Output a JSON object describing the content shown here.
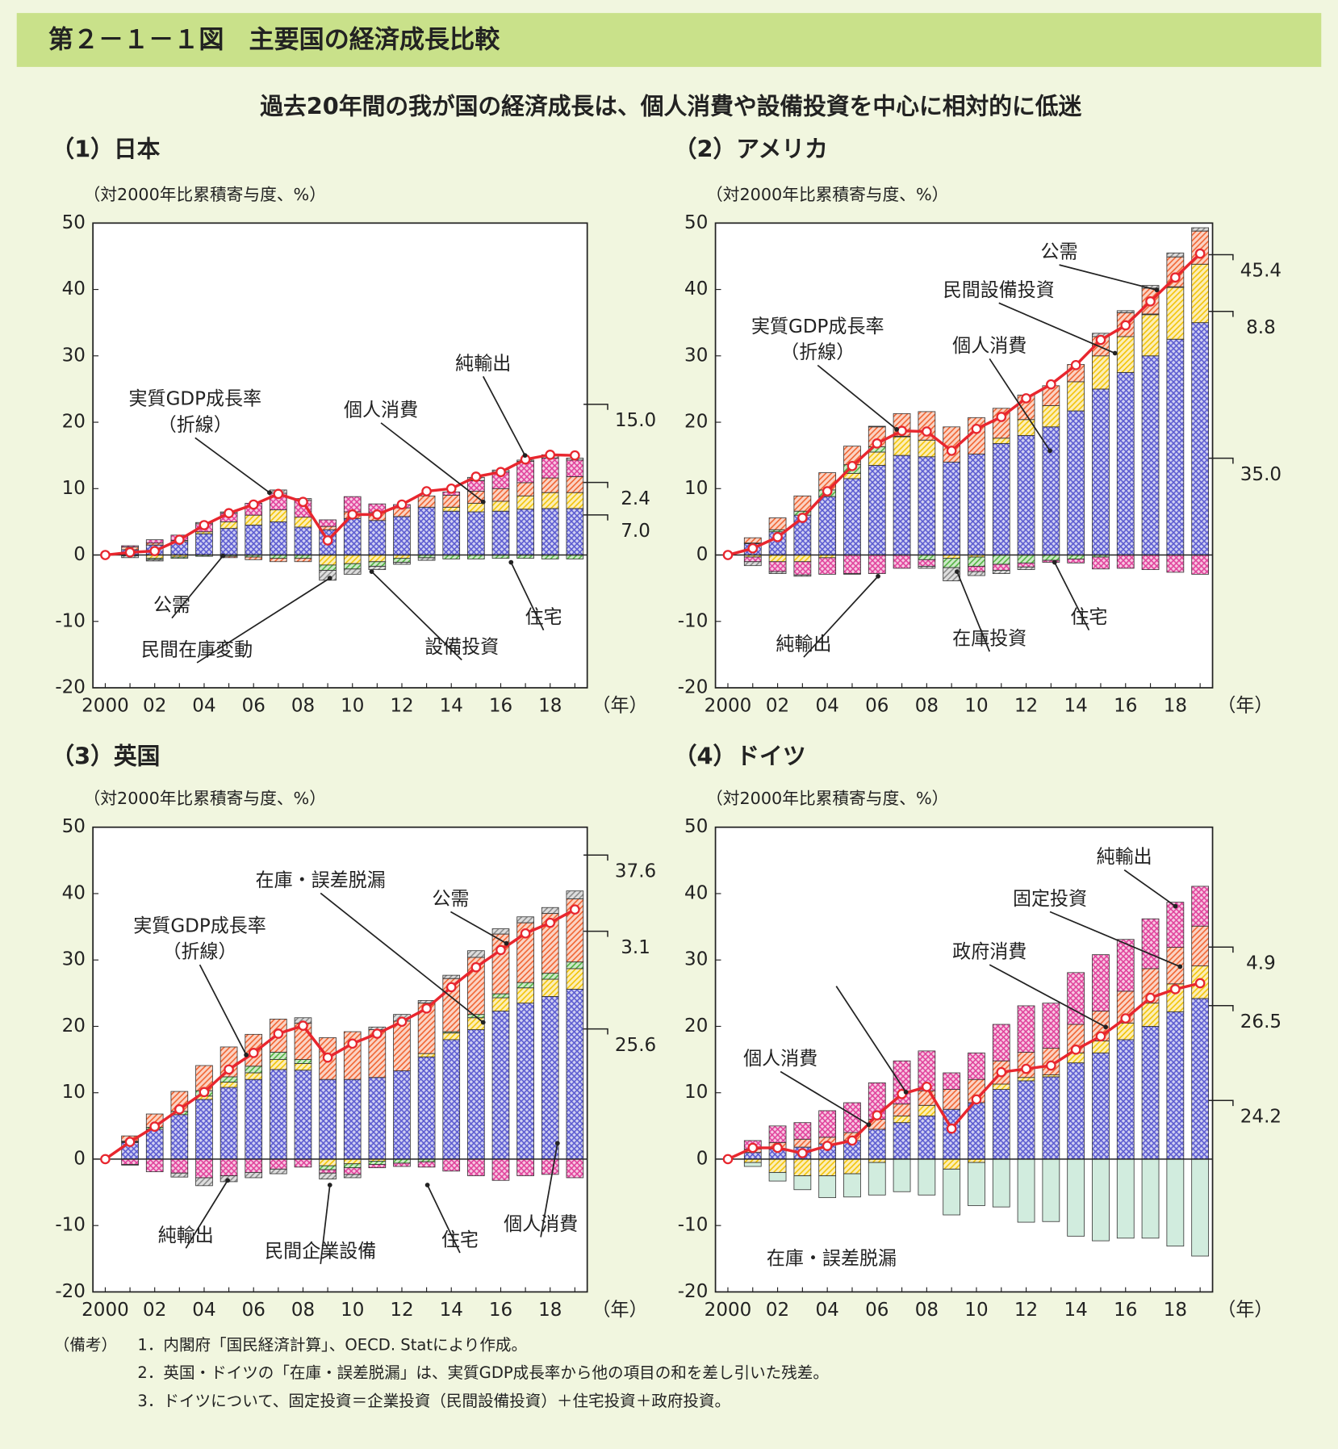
{
  "title": "第２－１－１図　主要国の経済成長比較",
  "subtitle": "過去20年間の我が国の経済成長は、個人消費や設備投資を中心に相対的に低迷",
  "notes": [
    "（備考）",
    "1．内閣府「国民経済計算」、OECD. Statにより作成。",
    "2．英国・ドイツの「在庫・誤差脱漏」は、実質GDP成長率から他の項目の和を差し引いた残差。",
    "3．ドイツについて、固定投資＝企業投資（民間設備投資）＋住宅投資＋政府投資。"
  ],
  "chart_data": [
    {
      "type": "stacked_bar_line",
      "title": "（1）日本",
      "y_label": "（対2000年比累積寄与度、%）",
      "x_label": "（年）",
      "categories": [
        "2000",
        null,
        "02",
        null,
        "04",
        null,
        "06",
        null,
        "08",
        null,
        "10",
        null,
        "12",
        null,
        "14",
        null,
        "16",
        null,
        "18",
        null
      ],
      "ylim": [
        -20,
        50
      ],
      "yticks": [
        -20,
        -10,
        0,
        10,
        20,
        30,
        40,
        50
      ],
      "series": [
        {
          "name": "個人消費",
          "color": "#5a5ad0",
          "hatch": "cross",
          "values": [
            0,
            0.8,
            1.5,
            2.0,
            3.2,
            4.0,
            4.5,
            5.0,
            4.2,
            3.8,
            5.5,
            5.2,
            5.8,
            7.2,
            6.6,
            6.5,
            6.6,
            6.9,
            7.0,
            7.0
          ]
        },
        {
          "name": "設備投資",
          "color": "#f2c200",
          "hatch": "diag",
          "values": [
            0,
            0,
            -0.5,
            -0.3,
            0.3,
            1.0,
            1.5,
            1.8,
            1.5,
            -1.5,
            -1.3,
            -1.0,
            -0.5,
            0,
            0.6,
            1.3,
            1.5,
            2.0,
            2.4,
            2.4
          ]
        },
        {
          "name": "住宅",
          "color": "#4caf3a",
          "hatch": "diag",
          "values": [
            0,
            -0.1,
            -0.2,
            -0.2,
            -0.2,
            -0.2,
            -0.3,
            -0.5,
            -0.5,
            -0.8,
            -0.8,
            -0.7,
            -0.6,
            -0.4,
            -0.6,
            -0.6,
            -0.5,
            -0.5,
            -0.6,
            -0.6
          ]
        },
        {
          "name": "公需",
          "color": "#f0602c",
          "hatch": "diag",
          "values": [
            0,
            0.4,
            0.3,
            0.2,
            0,
            -0.2,
            -0.4,
            -0.5,
            -0.5,
            0.5,
            1.0,
            1.2,
            1.3,
            1.7,
            1.8,
            1.8,
            1.9,
            2.0,
            2.2,
            2.4
          ]
        },
        {
          "name": "純輸出",
          "color": "#e0409a",
          "hatch": "cross",
          "values": [
            0,
            0.2,
            0.5,
            0.8,
            1.2,
            1.3,
            1.8,
            2.5,
            2.5,
            1.0,
            2.3,
            1.3,
            0.5,
            0,
            0.5,
            1.6,
            2.5,
            3.2,
            3.0,
            2.5
          ]
        },
        {
          "name": "民間在庫変動",
          "color": "#888888",
          "hatch": "diag",
          "values": [
            0,
            -0.3,
            -0.2,
            0,
            0.2,
            0.2,
            0,
            0.5,
            0.3,
            -1.5,
            -0.8,
            -0.5,
            -0.3,
            -0.4,
            0,
            0.5,
            0.3,
            0.2,
            0.5,
            0.3
          ]
        },
        {
          "name": "実質GDP成長率",
          "note": "（折線）",
          "type": "line",
          "color": "#e8262e",
          "values": [
            0,
            0.4,
            0.6,
            2.3,
            4.5,
            6.3,
            7.6,
            9.2,
            8.0,
            2.2,
            6.1,
            6.1,
            7.6,
            9.6,
            10.0,
            11.8,
            12.5,
            14.4,
            15.1,
            15.0
          ]
        }
      ],
      "end_labels": [
        "15.0",
        "2.4",
        "7.0"
      ]
    },
    {
      "type": "stacked_bar_line",
      "title": "（2）アメリカ",
      "y_label": "（対2000年比累積寄与度、%）",
      "x_label": "（年）",
      "categories": [
        "2000",
        null,
        "02",
        null,
        "04",
        null,
        "06",
        null,
        "08",
        null,
        "10",
        null,
        "12",
        null,
        "14",
        null,
        "16",
        null,
        "18",
        null
      ],
      "ylim": [
        -20,
        50
      ],
      "yticks": [
        -20,
        -10,
        0,
        10,
        20,
        30,
        40,
        50
      ],
      "series": [
        {
          "name": "個人消費",
          "color": "#5a5ad0",
          "hatch": "cross",
          "values": [
            0,
            1.7,
            3.5,
            6.0,
            8.8,
            11.5,
            13.5,
            15.0,
            14.8,
            14.0,
            15.2,
            16.8,
            18.0,
            19.3,
            21.7,
            25.0,
            27.5,
            30.0,
            32.5,
            35.0
          ]
        },
        {
          "name": "民間設備投資",
          "color": "#f2c200",
          "hatch": "diag",
          "values": [
            0,
            -0.3,
            -1.0,
            -1.0,
            -0.4,
            0.8,
            2.0,
            2.8,
            2.5,
            -0.5,
            -0.3,
            0.8,
            2.4,
            3.2,
            4.4,
            5.0,
            5.4,
            6.2,
            7.8,
            8.8
          ]
        },
        {
          "name": "住宅",
          "color": "#4caf3a",
          "hatch": "diag",
          "values": [
            0,
            0.1,
            0.3,
            0.6,
            1.0,
            1.3,
            0.8,
            0.1,
            -0.7,
            -1.4,
            -1.4,
            -1.4,
            -1.2,
            -0.8,
            -0.6,
            -0.3,
            0,
            0.1,
            0.1,
            0
          ]
        },
        {
          "name": "公需",
          "color": "#f0602c",
          "hatch": "diag",
          "values": [
            0,
            0.8,
            1.8,
            2.3,
            2.6,
            2.8,
            3.0,
            3.4,
            4.3,
            5.3,
            5.5,
            4.5,
            3.7,
            3.0,
            2.6,
            2.9,
            3.6,
            3.9,
            4.5,
            5.0
          ]
        },
        {
          "name": "純輸出",
          "color": "#e0409a",
          "hatch": "cross",
          "values": [
            0,
            -0.7,
            -1.5,
            -2.0,
            -2.5,
            -2.8,
            -2.8,
            -2.0,
            -1.0,
            0,
            -0.8,
            -0.9,
            -0.6,
            -0.3,
            -0.6,
            -1.8,
            -2.0,
            -2.2,
            -2.6,
            -2.9
          ]
        },
        {
          "name": "在庫投資",
          "color": "#888888",
          "hatch": "diag",
          "values": [
            0,
            -0.6,
            -0.3,
            -0.2,
            0,
            -0.1,
            0.1,
            0,
            -0.3,
            -2.0,
            -0.6,
            -0.5,
            -0.4,
            0,
            0,
            0.5,
            0.3,
            0.4,
            0.6,
            0.5
          ]
        },
        {
          "name": "実質GDP成長率",
          "note": "（折線）",
          "type": "line",
          "color": "#e8262e",
          "values": [
            0,
            1.0,
            2.7,
            5.6,
            9.6,
            13.4,
            16.8,
            18.7,
            18.6,
            15.7,
            19.0,
            20.8,
            23.6,
            25.7,
            28.6,
            32.4,
            34.6,
            38.2,
            41.8,
            45.4
          ]
        }
      ],
      "end_labels": [
        "45.4",
        "8.8",
        "35.0"
      ]
    },
    {
      "type": "stacked_bar_line",
      "title": "（3）英国",
      "y_label": "（対2000年比累積寄与度、%）",
      "x_label": "（年）",
      "categories": [
        "2000",
        null,
        "02",
        null,
        "04",
        null,
        "06",
        null,
        "08",
        null,
        "10",
        null,
        "12",
        null,
        "14",
        null,
        "16",
        null,
        "18",
        null
      ],
      "ylim": [
        -20,
        50
      ],
      "yticks": [
        -20,
        -10,
        0,
        10,
        20,
        30,
        40,
        50
      ],
      "series": [
        {
          "name": "個人消費",
          "color": "#5a5ad0",
          "hatch": "cross",
          "values": [
            0,
            2.5,
            4.5,
            6.7,
            9.0,
            10.8,
            12.0,
            13.5,
            13.4,
            12.0,
            12.0,
            12.3,
            13.3,
            15.4,
            18.0,
            19.5,
            22.3,
            23.5,
            24.5,
            25.6
          ]
        },
        {
          "name": "民間企業設備",
          "color": "#f2c200",
          "hatch": "diag",
          "values": [
            0,
            0.1,
            0,
            0,
            0.5,
            0.8,
            1.0,
            1.5,
            1.0,
            -1.0,
            -0.7,
            -0.3,
            0,
            0.5,
            1.0,
            1.8,
            2.0,
            2.3,
            2.6,
            3.1
          ]
        },
        {
          "name": "住宅",
          "color": "#4caf3a",
          "hatch": "diag",
          "values": [
            0,
            0.1,
            0.3,
            0.5,
            0.8,
            0.8,
            1.0,
            1.1,
            0.6,
            -0.6,
            -0.6,
            -0.5,
            -0.6,
            -0.4,
            0.2,
            0.5,
            0.6,
            0.8,
            0.9,
            1.0
          ]
        },
        {
          "name": "公需",
          "color": "#f0602c",
          "hatch": "diag",
          "values": [
            0,
            0.8,
            2.0,
            3.0,
            3.8,
            4.5,
            4.8,
            5.0,
            5.5,
            6.3,
            7.2,
            7.2,
            7.5,
            7.6,
            8.0,
            8.6,
            9.0,
            9.0,
            9.0,
            9.5
          ]
        },
        {
          "name": "純輸出",
          "color": "#e0409a",
          "hatch": "cross",
          "values": [
            0,
            -0.8,
            -1.9,
            -2.1,
            -2.8,
            -2.5,
            -2.0,
            -1.5,
            -1.2,
            -0.5,
            -1.0,
            -0.5,
            -0.5,
            -0.8,
            -1.8,
            -2.5,
            -3.2,
            -2.5,
            -2.3,
            -2.8
          ]
        },
        {
          "name": "在庫・誤差脱漏",
          "color": "#888888",
          "hatch": "diag",
          "values": [
            0,
            -0.1,
            0,
            -0.6,
            -1.2,
            -0.9,
            -0.8,
            -0.7,
            0.8,
            -0.9,
            -0.5,
            0.4,
            1.0,
            0.4,
            0.5,
            1.0,
            0.8,
            0.9,
            0.9,
            1.2
          ]
        },
        {
          "name": "実質GDP成長率",
          "note": "（折線）",
          "type": "line",
          "color": "#e8262e",
          "values": [
            0,
            2.6,
            4.9,
            7.5,
            10.1,
            13.5,
            16.0,
            18.9,
            20.1,
            15.3,
            17.4,
            18.9,
            20.7,
            22.7,
            25.9,
            28.9,
            31.5,
            34.0,
            35.6,
            37.6
          ]
        }
      ],
      "end_labels": [
        "37.6",
        "3.1",
        "25.6"
      ]
    },
    {
      "type": "stacked_bar_line",
      "title": "（4）ドイツ",
      "y_label": "（対2000年比累積寄与度、%）",
      "x_label": "（年）",
      "categories": [
        "2000",
        null,
        "02",
        null,
        "04",
        null,
        "06",
        null,
        "08",
        null,
        "10",
        null,
        "12",
        null,
        "14",
        null,
        "16",
        null,
        "18",
        null
      ],
      "ylim": [
        -20,
        50
      ],
      "yticks": [
        -20,
        -10,
        0,
        10,
        20,
        30,
        40,
        50
      ],
      "series": [
        {
          "name": "個人消費",
          "color": "#5a5ad0",
          "hatch": "cross",
          "values": [
            0,
            1.0,
            1.5,
            1.8,
            2.3,
            2.8,
            4.5,
            5.5,
            6.5,
            7.5,
            8.5,
            10.5,
            11.8,
            12.4,
            14.5,
            16.0,
            18.0,
            20.0,
            22.2,
            24.2
          ]
        },
        {
          "name": "固定投資",
          "color": "#f2c200",
          "hatch": "diag",
          "values": [
            0,
            -0.5,
            -2.0,
            -2.5,
            -2.5,
            -2.2,
            -0.5,
            1.0,
            1.6,
            -1.5,
            -0.5,
            0.8,
            0.5,
            0.3,
            1.5,
            1.8,
            2.5,
            3.5,
            4.2,
            4.9
          ]
        },
        {
          "name": "政府消費",
          "color": "#f0602c",
          "hatch": "diag",
          "values": [
            0,
            0.5,
            1.0,
            1.2,
            1.0,
            1.2,
            1.5,
            1.8,
            2.2,
            3.0,
            3.5,
            3.5,
            3.8,
            4.0,
            4.3,
            4.5,
            4.8,
            5.2,
            5.5,
            6.0
          ]
        },
        {
          "name": "純輸出",
          "color": "#e0409a",
          "hatch": "cross",
          "values": [
            0,
            1.3,
            2.5,
            2.5,
            4.0,
            4.5,
            5.5,
            6.5,
            6.0,
            2.5,
            4.0,
            5.5,
            7.0,
            6.8,
            7.8,
            8.5,
            7.8,
            7.5,
            6.8,
            6.0
          ]
        },
        {
          "name": "在庫・誤差脱漏",
          "color": "#7cc9a0",
          "hatch": "none",
          "values": [
            0,
            -0.6,
            -1.3,
            -2.1,
            -3.3,
            -3.5,
            -4.9,
            -4.9,
            -5.4,
            -6.9,
            -6.5,
            -7.2,
            -9.5,
            -9.4,
            -11.6,
            -12.3,
            -11.9,
            -11.9,
            -13.1,
            -14.6
          ]
        },
        {
          "name": "実質GDP成長率",
          "note": "（折線）",
          "type": "line",
          "color": "#e8262e",
          "values": [
            0,
            1.7,
            1.7,
            0.9,
            2.0,
            2.8,
            6.6,
            9.8,
            10.9,
            4.6,
            9.0,
            13.1,
            13.6,
            14.1,
            16.5,
            18.5,
            21.2,
            24.3,
            25.6,
            26.5
          ]
        }
      ],
      "end_labels": [
        "4.9",
        "26.5",
        "24.2"
      ]
    }
  ]
}
